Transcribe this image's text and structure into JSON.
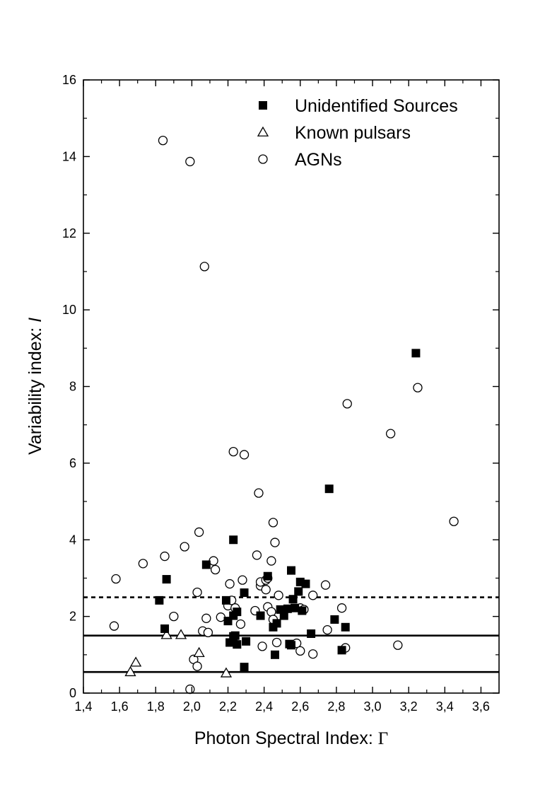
{
  "chart_data": {
    "type": "scatter",
    "xlabel_text": "Photon Spectral Index: ",
    "xlabel_symbol": "Γ",
    "ylabel_text": "Variability index: ",
    "ylabel_symbol": "I",
    "xlim": [
      1.4,
      3.7
    ],
    "ylim": [
      0,
      16
    ],
    "x_ticks": [
      1.4,
      1.6,
      1.8,
      2.0,
      2.2,
      2.4,
      2.6,
      2.8,
      3.0,
      3.2,
      3.4,
      3.6
    ],
    "x_tick_labels": [
      "1,4",
      "1,6",
      "1,8",
      "2,0",
      "2,2",
      "2,4",
      "2,6",
      "2,8",
      "3,0",
      "3,2",
      "3,4",
      "3,6"
    ],
    "y_ticks": [
      0,
      2,
      4,
      6,
      8,
      10,
      12,
      14,
      16
    ],
    "y_tick_labels": [
      "0",
      "2",
      "4",
      "6",
      "8",
      "10",
      "12",
      "14",
      "16"
    ],
    "legend_position": "top-right",
    "reference_lines": [
      {
        "y": 2.5,
        "style": "dashed"
      },
      {
        "y": 1.5,
        "style": "solid"
      },
      {
        "y": 0.55,
        "style": "solid"
      }
    ],
    "series": [
      {
        "name": "Unidentified Sources",
        "marker": "filled-square",
        "points": [
          [
            1.82,
            2.42
          ],
          [
            1.85,
            1.68
          ],
          [
            1.86,
            2.97
          ],
          [
            2.08,
            3.35
          ],
          [
            2.19,
            2.42
          ],
          [
            2.2,
            1.88
          ],
          [
            2.21,
            1.32
          ],
          [
            2.23,
            4.0
          ],
          [
            2.23,
            2.02
          ],
          [
            2.23,
            1.48
          ],
          [
            2.24,
            1.5
          ],
          [
            2.25,
            2.12
          ],
          [
            2.25,
            1.27
          ],
          [
            2.29,
            2.62
          ],
          [
            2.29,
            0.68
          ],
          [
            2.3,
            1.35
          ],
          [
            2.38,
            2.02
          ],
          [
            2.42,
            3.05
          ],
          [
            2.45,
            1.72
          ],
          [
            2.46,
            1.0
          ],
          [
            2.47,
            1.82
          ],
          [
            2.49,
            2.18
          ],
          [
            2.51,
            2.02
          ],
          [
            2.53,
            2.2
          ],
          [
            2.54,
            1.28
          ],
          [
            2.55,
            1.25
          ],
          [
            2.55,
            3.2
          ],
          [
            2.56,
            2.45
          ],
          [
            2.57,
            2.22
          ],
          [
            2.59,
            2.65
          ],
          [
            2.6,
            2.9
          ],
          [
            2.61,
            2.15
          ],
          [
            2.63,
            2.85
          ],
          [
            2.66,
            1.55
          ],
          [
            2.76,
            5.33
          ],
          [
            2.79,
            1.92
          ],
          [
            2.83,
            1.12
          ],
          [
            2.85,
            1.72
          ],
          [
            3.24,
            8.87
          ]
        ]
      },
      {
        "name": "Known pulsars",
        "marker": "open-triangle",
        "points": [
          [
            1.66,
            0.55
          ],
          [
            1.69,
            0.8
          ],
          [
            1.86,
            1.52
          ],
          [
            1.94,
            1.52
          ],
          [
            2.04,
            1.05
          ],
          [
            2.19,
            0.52
          ]
        ]
      },
      {
        "name": "AGNs",
        "marker": "open-circle",
        "points": [
          [
            1.57,
            1.75
          ],
          [
            1.58,
            2.98
          ],
          [
            1.73,
            3.38
          ],
          [
            1.84,
            14.42
          ],
          [
            1.85,
            3.57
          ],
          [
            1.9,
            2.0
          ],
          [
            1.96,
            3.82
          ],
          [
            1.99,
            13.87
          ],
          [
            1.99,
            0.1
          ],
          [
            2.01,
            0.88
          ],
          [
            2.03,
            0.7
          ],
          [
            2.03,
            2.63
          ],
          [
            2.04,
            4.2
          ],
          [
            2.06,
            1.62
          ],
          [
            2.07,
            11.13
          ],
          [
            2.08,
            1.95
          ],
          [
            2.09,
            1.58
          ],
          [
            2.12,
            3.45
          ],
          [
            2.13,
            3.22
          ],
          [
            2.16,
            1.98
          ],
          [
            2.2,
            2.28
          ],
          [
            2.21,
            2.85
          ],
          [
            2.22,
            2.42
          ],
          [
            2.23,
            6.3
          ],
          [
            2.24,
            2.22
          ],
          [
            2.27,
            1.8
          ],
          [
            2.28,
            2.95
          ],
          [
            2.29,
            6.22
          ],
          [
            2.35,
            2.15
          ],
          [
            2.36,
            3.6
          ],
          [
            2.37,
            5.22
          ],
          [
            2.38,
            2.8
          ],
          [
            2.38,
            2.9
          ],
          [
            2.39,
            1.22
          ],
          [
            2.41,
            2.95
          ],
          [
            2.41,
            2.7
          ],
          [
            2.42,
            3.0
          ],
          [
            2.42,
            2.25
          ],
          [
            2.44,
            2.12
          ],
          [
            2.44,
            3.45
          ],
          [
            2.45,
            4.45
          ],
          [
            2.45,
            1.92
          ],
          [
            2.46,
            3.93
          ],
          [
            2.47,
            1.32
          ],
          [
            2.48,
            2.55
          ],
          [
            2.58,
            1.3
          ],
          [
            2.6,
            1.1
          ],
          [
            2.6,
            2.22
          ],
          [
            2.62,
            2.18
          ],
          [
            2.67,
            2.55
          ],
          [
            2.67,
            1.02
          ],
          [
            2.74,
            2.82
          ],
          [
            2.75,
            1.65
          ],
          [
            2.83,
            2.22
          ],
          [
            2.85,
            1.18
          ],
          [
            2.86,
            7.55
          ],
          [
            3.1,
            6.77
          ],
          [
            3.14,
            1.25
          ],
          [
            3.25,
            7.97
          ],
          [
            3.45,
            4.48
          ]
        ]
      }
    ]
  }
}
